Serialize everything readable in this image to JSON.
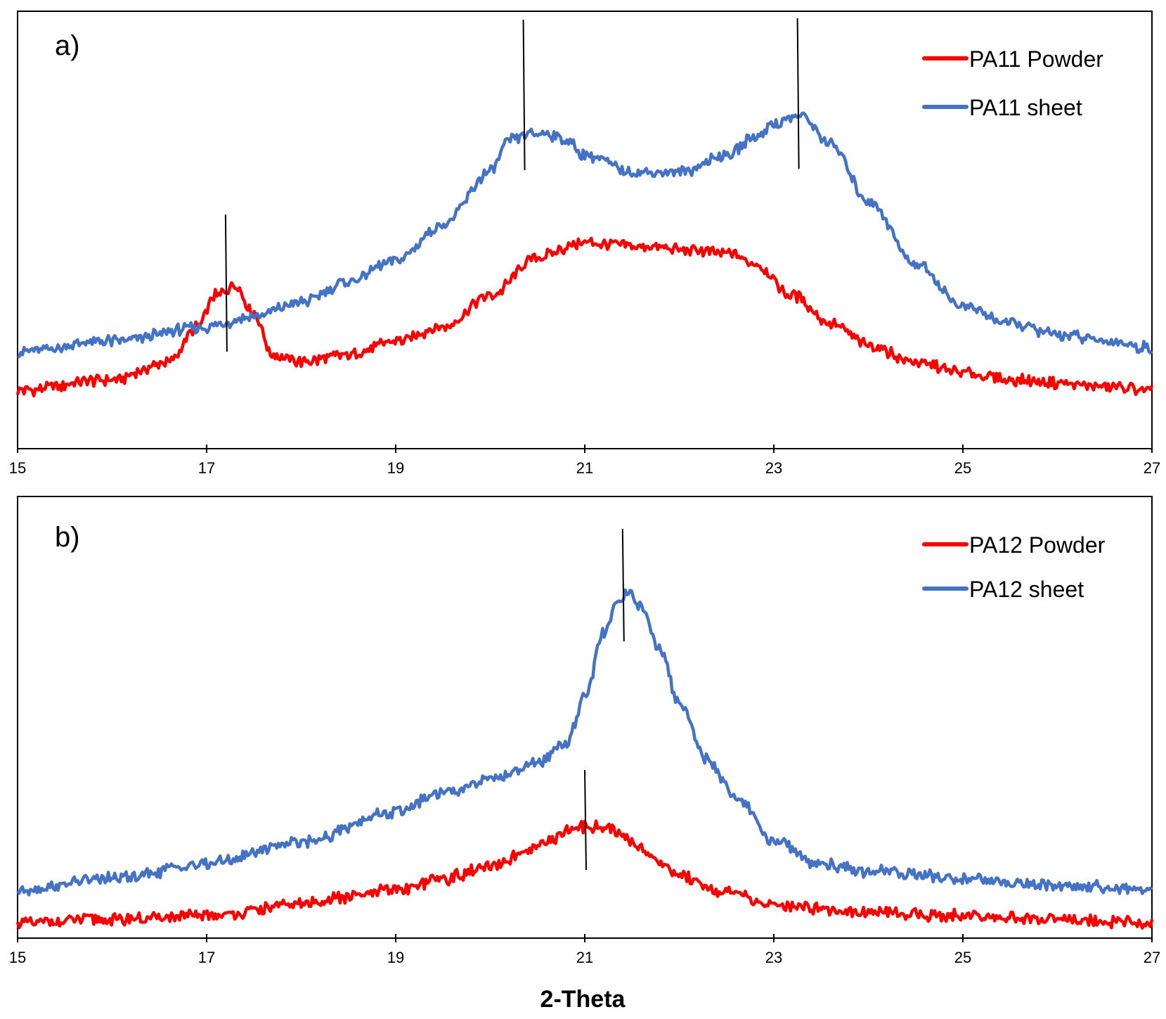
{
  "colors": {
    "powder": "#ff0000",
    "sheet": "#4472c4",
    "marker": "#000000",
    "axis": "#000000"
  },
  "x_axis_title": "2-Theta",
  "chart_data": [
    {
      "type": "line",
      "panel_label": "a)",
      "xlabel": "2-Theta",
      "ylabel": "",
      "xlim": [
        15,
        27
      ],
      "ylim": [
        0,
        100
      ],
      "xticks": [
        "15",
        "17",
        "19",
        "21",
        "23",
        "25",
        "27"
      ],
      "grid": false,
      "legend_position": "top-right",
      "series": [
        {
          "name": "PA11 Powder",
          "color": "#ff0000",
          "x": [
            15.0,
            16.0,
            16.6,
            16.9,
            17.1,
            17.3,
            17.5,
            17.7,
            18.0,
            18.5,
            19.0,
            19.5,
            20.0,
            20.5,
            21.0,
            21.5,
            22.0,
            22.5,
            22.8,
            23.2,
            23.6,
            24.0,
            24.5,
            25.0,
            25.5,
            26.0,
            26.5,
            27.0
          ],
          "values": [
            7,
            10,
            15,
            25,
            34,
            37,
            29,
            17,
            15,
            17,
            21,
            25,
            34,
            45,
            49,
            48,
            47,
            46,
            43,
            34,
            26,
            20,
            15,
            12,
            10,
            9,
            8,
            7
          ]
        },
        {
          "name": "PA11 sheet",
          "color": "#4472c4",
          "x": [
            15.0,
            16.0,
            17.0,
            17.5,
            18.0,
            18.5,
            19.0,
            19.5,
            20.0,
            20.2,
            20.4,
            20.6,
            20.8,
            21.0,
            21.5,
            22.0,
            22.5,
            22.8,
            23.0,
            23.3,
            23.6,
            24.0,
            24.5,
            25.0,
            25.5,
            26.0,
            26.5,
            27.0
          ],
          "values": [
            18,
            21,
            25,
            28,
            32,
            38,
            44,
            54,
            69,
            78,
            80,
            80,
            78,
            74,
            69,
            69,
            74,
            79,
            83,
            85,
            77,
            61,
            43,
            31,
            26,
            23,
            21,
            19
          ]
        }
      ],
      "peak_markers": [
        17.2,
        20.35,
        23.25
      ]
    },
    {
      "type": "line",
      "panel_label": "b)",
      "xlabel": "2-Theta",
      "ylabel": "",
      "xlim": [
        15,
        27
      ],
      "ylim": [
        0,
        100
      ],
      "xticks": [
        "15",
        "17",
        "19",
        "21",
        "23",
        "25",
        "27"
      ],
      "grid": false,
      "legend_position": "top-right",
      "series": [
        {
          "name": "PA12 Powder",
          "color": "#ff0000",
          "x": [
            15.0,
            16.0,
            17.0,
            18.0,
            18.5,
            19.0,
            19.5,
            20.0,
            20.3,
            20.6,
            20.85,
            21.0,
            21.2,
            21.5,
            21.8,
            22.0,
            22.5,
            23.0,
            24.0,
            25.0,
            26.0,
            27.0
          ],
          "values": [
            1,
            2,
            3,
            6,
            8,
            10,
            13,
            16,
            19,
            23,
            26,
            27,
            27,
            23,
            17,
            14,
            9,
            6,
            4,
            3,
            2,
            1
          ]
        },
        {
          "name": "PA12 sheet",
          "color": "#4472c4",
          "x": [
            15.0,
            16.0,
            17.0,
            18.0,
            19.0,
            19.5,
            20.0,
            20.5,
            20.8,
            21.0,
            21.2,
            21.35,
            21.45,
            21.6,
            21.8,
            22.0,
            22.3,
            22.6,
            23.0,
            23.5,
            24.0,
            25.0,
            26.0,
            27.0
          ],
          "values": [
            10,
            13,
            17,
            23,
            31,
            36,
            40,
            44,
            49,
            62,
            79,
            88,
            90,
            86,
            74,
            60,
            45,
            35,
            23,
            17,
            15,
            13,
            11,
            10
          ]
        }
      ],
      "peak_markers": [
        21.0,
        21.4
      ]
    }
  ]
}
